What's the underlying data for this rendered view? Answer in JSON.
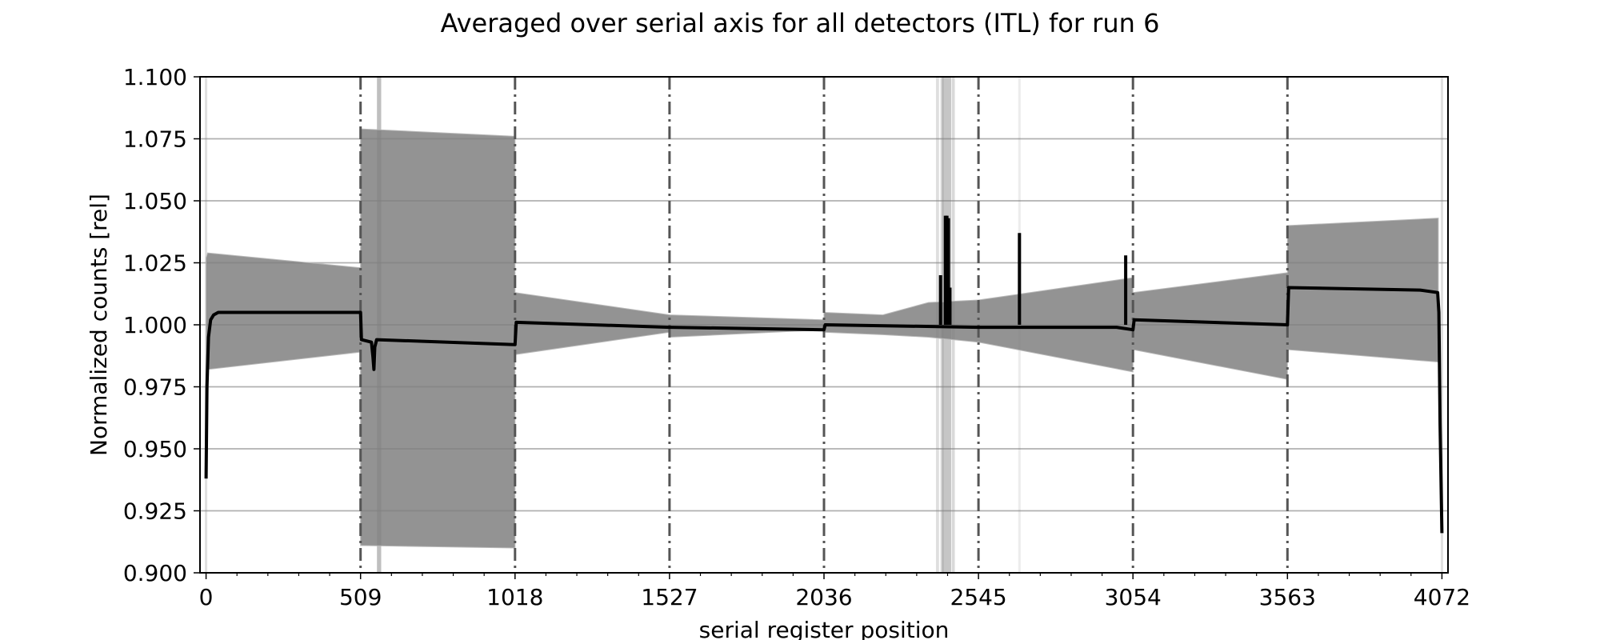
{
  "chart_data": {
    "type": "line",
    "title": "Averaged over serial axis for all detectors (ITL) for run 6",
    "xlabel": "serial register position",
    "ylabel": "Normalized counts [rel]",
    "xlim": [
      -20,
      4092
    ],
    "ylim": [
      0.9,
      1.1
    ],
    "x_ticks": [
      0,
      509,
      1018,
      1527,
      2036,
      2545,
      3054,
      3563,
      4072
    ],
    "x_tick_labels": [
      "0",
      "509",
      "1018",
      "1527",
      "2036",
      "2545",
      "3054",
      "3563",
      "4072"
    ],
    "y_ticks": [
      0.9,
      0.925,
      0.95,
      0.975,
      1.0,
      1.025,
      1.05,
      1.075,
      1.1
    ],
    "y_tick_labels": [
      "0.900",
      "0.925",
      "0.950",
      "0.975",
      "1.000",
      "1.025",
      "1.050",
      "1.075",
      "1.100"
    ],
    "grid": "horizontal",
    "segment_boundaries": [
      509,
      1018,
      1527,
      2036,
      2545,
      3054,
      3563
    ],
    "vertical_bands": [
      {
        "x": 0,
        "width": 8,
        "opacity": 0.25
      },
      {
        "x": 570,
        "width": 14,
        "opacity": 0.5
      },
      {
        "x": 2410,
        "width": 10,
        "opacity": 0.25
      },
      {
        "x": 2425,
        "width": 10,
        "opacity": 0.3
      },
      {
        "x": 2440,
        "width": 30,
        "opacity": 0.45
      },
      {
        "x": 2462,
        "width": 10,
        "opacity": 0.3
      },
      {
        "x": 2680,
        "width": 8,
        "opacity": 0.15
      },
      {
        "x": 4072,
        "width": 8,
        "opacity": 0.25
      }
    ],
    "spread_band": {
      "x": [
        0,
        5,
        509,
        509,
        1018,
        1018,
        1527,
        1527,
        2036,
        2036,
        2230,
        2380,
        2545,
        2545,
        3054,
        3054,
        3563,
        3563,
        4060
      ],
      "upper": [
        1.027,
        1.029,
        1.023,
        1.079,
        1.076,
        1.013,
        1.004,
        1.004,
        1.002,
        1.005,
        1.004,
        1.009,
        1.01,
        1.01,
        1.019,
        1.013,
        1.021,
        1.04,
        1.043
      ],
      "lower": [
        0.975,
        0.982,
        0.989,
        0.911,
        0.91,
        0.988,
        0.997,
        0.995,
        0.998,
        0.997,
        0.996,
        0.995,
        0.993,
        0.993,
        0.981,
        0.99,
        0.978,
        0.99,
        0.985
      ]
    },
    "series": [
      {
        "x": [
          0,
          3,
          8,
          15,
          25,
          40,
          509,
          512,
          545,
          550,
          553,
          556,
          562,
          1018,
          1022,
          1527,
          1530,
          2036,
          2040,
          2545,
          3000,
          3054,
          3058,
          3563,
          3567,
          4000,
          4058,
          4062,
          4066,
          4072
        ],
        "y": [
          0.938,
          0.975,
          0.995,
          1.002,
          1.004,
          1.005,
          1.005,
          0.994,
          0.993,
          0.987,
          0.982,
          0.991,
          0.994,
          0.992,
          1.001,
          0.999,
          0.999,
          0.998,
          1.0,
          0.999,
          0.999,
          0.998,
          1.002,
          1.0,
          1.015,
          1.014,
          1.013,
          1.005,
          0.96,
          0.916
        ]
      }
    ],
    "spikes": [
      {
        "x": 2420,
        "y": 1.02
      },
      {
        "x": 2436,
        "y": 1.044
      },
      {
        "x": 2441,
        "y": 1.044
      },
      {
        "x": 2446,
        "y": 1.043
      },
      {
        "x": 2451,
        "y": 1.015
      },
      {
        "x": 2680,
        "y": 1.037
      },
      {
        "x": 3030,
        "y": 1.028
      }
    ],
    "colors": {
      "spread": "#808080",
      "series": "#000000",
      "grid": "#b0b0b0",
      "boundary": "#555555"
    }
  }
}
